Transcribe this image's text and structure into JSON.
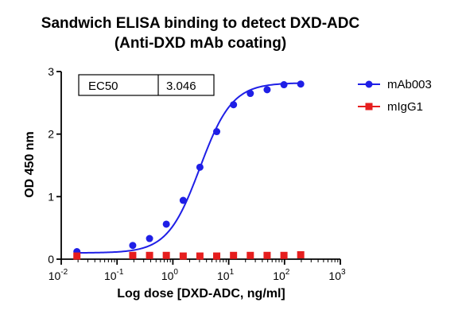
{
  "chart_data": {
    "type": "scatter",
    "title": [
      "Sandwich ELISA binding to detect DXD-ADC",
      "(Anti-DXD mAb coating)"
    ],
    "xlabel": "Log dose [DXD-ADC, ng/ml]",
    "ylabel": "OD 450 nm",
    "x_scale": "log",
    "xlim": [
      0.01,
      1000
    ],
    "ylim": [
      0,
      3
    ],
    "x_ticks": [
      {
        "base": "10",
        "exp": "-2",
        "value": 0.01
      },
      {
        "base": "10",
        "exp": "-1",
        "value": 0.1
      },
      {
        "base": "10",
        "exp": "0",
        "value": 1
      },
      {
        "base": "10",
        "exp": "1",
        "value": 10
      },
      {
        "base": "10",
        "exp": "2",
        "value": 100
      },
      {
        "base": "10",
        "exp": "3",
        "value": 1000
      }
    ],
    "y_ticks": [
      "0",
      "1",
      "2",
      "3"
    ],
    "grid": false,
    "legend_position": "top-right",
    "ec50_table": {
      "label": "EC50",
      "value": "3.046"
    },
    "series": [
      {
        "name": "mAb003",
        "color": "#1f1fe6",
        "marker": "circle",
        "fit": "4PL",
        "fit_params": {
          "bottom": 0.1,
          "top": 2.82,
          "ec50": 3.046,
          "hill": 1.5
        },
        "x": [
          0.0191,
          0.191,
          0.382,
          0.763,
          1.53,
          3.05,
          6.1,
          12.2,
          24.4,
          48.8,
          97.7,
          195
        ],
        "y": [
          0.12,
          0.22,
          0.33,
          0.56,
          0.94,
          1.47,
          2.04,
          2.47,
          2.65,
          2.71,
          2.79,
          2.8
        ]
      },
      {
        "name": "mIgG1",
        "color": "#e61e1e",
        "marker": "square",
        "x": [
          0.0191,
          0.191,
          0.382,
          0.763,
          1.53,
          3.05,
          6.1,
          12.2,
          24.4,
          48.8,
          97.7,
          195
        ],
        "y": [
          0.05,
          0.06,
          0.06,
          0.06,
          0.05,
          0.05,
          0.05,
          0.06,
          0.06,
          0.06,
          0.06,
          0.07
        ]
      }
    ]
  }
}
